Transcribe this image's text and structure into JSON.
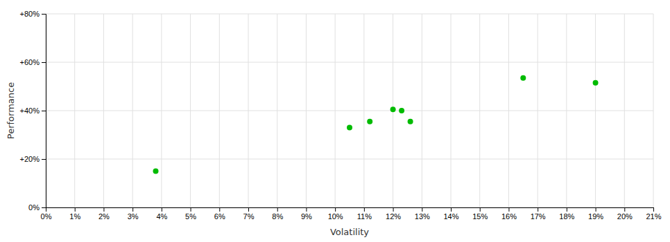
{
  "chart_data": {
    "type": "scatter",
    "xlabel": "Volatility",
    "ylabel": "Performance",
    "x": [
      3.8,
      10.5,
      11.2,
      12.0,
      12.3,
      12.6,
      16.5,
      19.0
    ],
    "values": [
      15.0,
      33.0,
      35.5,
      40.5,
      40.0,
      35.5,
      53.5,
      51.5
    ],
    "color": "#00bb00",
    "xlim": [
      0,
      21
    ],
    "ylim": [
      0,
      80
    ],
    "xticks": [
      {
        "value": 0,
        "label": "0%"
      },
      {
        "value": 1,
        "label": "1%"
      },
      {
        "value": 2,
        "label": "2%"
      },
      {
        "value": 3,
        "label": "3%"
      },
      {
        "value": 4,
        "label": "4%"
      },
      {
        "value": 5,
        "label": "5%"
      },
      {
        "value": 6,
        "label": "6%"
      },
      {
        "value": 7,
        "label": "7%"
      },
      {
        "value": 8,
        "label": "8%"
      },
      {
        "value": 9,
        "label": "9%"
      },
      {
        "value": 10,
        "label": "10%"
      },
      {
        "value": 11,
        "label": "11%"
      },
      {
        "value": 12,
        "label": "12%"
      },
      {
        "value": 13,
        "label": "13%"
      },
      {
        "value": 14,
        "label": "14%"
      },
      {
        "value": 15,
        "label": "15%"
      },
      {
        "value": 16,
        "label": "16%"
      },
      {
        "value": 17,
        "label": "17%"
      },
      {
        "value": 18,
        "label": "18%"
      },
      {
        "value": 19,
        "label": "19%"
      },
      {
        "value": 20,
        "label": "20%"
      },
      {
        "value": 21,
        "label": "21%"
      }
    ],
    "yticks": [
      {
        "value": 0,
        "label": "0%"
      },
      {
        "value": 20,
        "label": "+20%"
      },
      {
        "value": 40,
        "label": "+40%"
      },
      {
        "value": 60,
        "label": "+60%"
      },
      {
        "value": 80,
        "label": "+80%"
      }
    ],
    "grid": true
  }
}
